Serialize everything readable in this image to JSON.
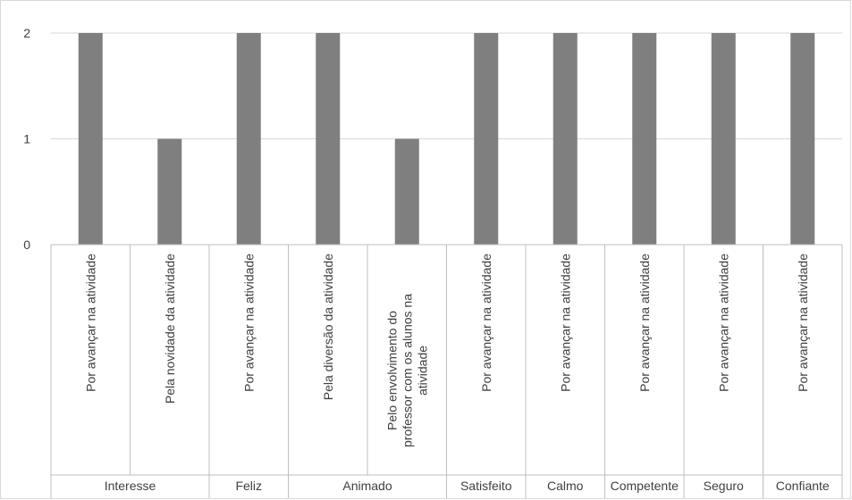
{
  "chart_data": {
    "type": "bar",
    "title": "",
    "xlabel": "",
    "ylabel": "",
    "ylim": [
      0,
      2
    ],
    "yticks": [
      "0",
      "1",
      "2"
    ],
    "grid": true,
    "legend": "none",
    "bar_color": "#7f7f7f",
    "grid_color": "#d9d9d9",
    "axis_color": "#bfbfbf",
    "categories": [
      "Por avançar na atividade",
      "Pela novidade da atividade",
      "Por avançar na atividade",
      "Pela diversão da atividade",
      "Pelo envolvimento do professor com os alunos na atividade",
      "Por avançar na atividade",
      "Por avançar na atividade",
      "Por avançar na atividade",
      "Por avançar na atividade",
      "Por avançar na atividade"
    ],
    "category_lines": [
      [
        "Por avançar na atividade"
      ],
      [
        "Pela novidade da atividade"
      ],
      [
        "Por avançar na atividade"
      ],
      [
        "Pela diversão da atividade"
      ],
      [
        "Pelo envolvimento do",
        "professor com os alunos na",
        "atividade"
      ],
      [
        "Por avançar na atividade"
      ],
      [
        "Por avançar na atividade"
      ],
      [
        "Por avançar na atividade"
      ],
      [
        "Por avançar na atividade"
      ],
      [
        "Por avançar na atividade"
      ]
    ],
    "groups": [
      {
        "name": "Interesse",
        "count": 2
      },
      {
        "name": "Feliz",
        "count": 1
      },
      {
        "name": "Animado",
        "count": 2
      },
      {
        "name": "Satisfeito",
        "count": 1
      },
      {
        "name": "Calmo",
        "count": 1
      },
      {
        "name": "Competente",
        "count": 1
      },
      {
        "name": "Seguro",
        "count": 1
      },
      {
        "name": "Confiante",
        "count": 1
      }
    ],
    "values": [
      2,
      1,
      2,
      2,
      1,
      2,
      2,
      2,
      2,
      2
    ]
  }
}
